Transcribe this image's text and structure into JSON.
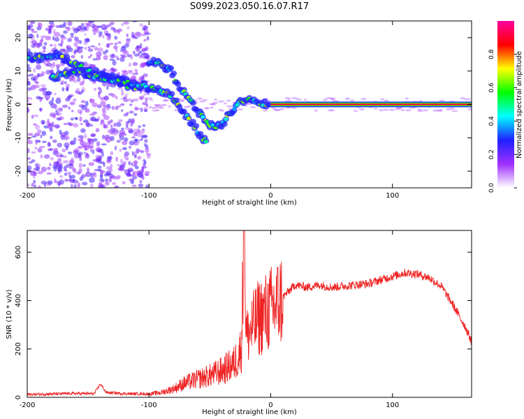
{
  "title": "S099.2023.050.16.07.R17",
  "chart_data": [
    {
      "type": "heatmap",
      "xlabel": "Height of straight line (km)",
      "ylabel": "Frequency (Hz)",
      "xlim": [
        -200,
        165
      ],
      "ylim": [
        -25,
        25
      ],
      "xticks": [
        -200,
        -100,
        0,
        100
      ],
      "yticks": [
        -20,
        -10,
        0,
        10,
        20
      ],
      "colorbar": {
        "label": "Normalized spectral amplitude",
        "range": [
          0,
          1
        ],
        "ticks": [
          "0.0",
          "0.2",
          "0.4",
          "0.6",
          "0.8"
        ],
        "colors": [
          "#ffffff",
          "#a030ff",
          "#2020ff",
          "#00ffff",
          "#00ff00",
          "#ffff00",
          "#ff0000",
          "#ff00a0"
        ]
      },
      "ridges": [
        {
          "name": "",
          "points": [
            [
              -200,
              14
            ],
            [
              -185,
              14
            ],
            [
              -175,
              15
            ],
            [
              -165,
              13
            ],
            [
              -150,
              10
            ],
            [
              -140,
              9
            ],
            [
              -130,
              8
            ],
            [
              -120,
              6
            ],
            [
              -110,
              4
            ]
          ]
        },
        {
          "name": "",
          "points": [
            [
              -180,
              8
            ],
            [
              -170,
              9
            ],
            [
              -160,
              10
            ],
            [
              -150,
              9
            ],
            [
              -140,
              8
            ],
            [
              -130,
              7
            ],
            [
              -120,
              7
            ],
            [
              -110,
              6
            ],
            [
              -100,
              5
            ],
            [
              -90,
              4
            ],
            [
              -80,
              2
            ],
            [
              -70,
              -3
            ],
            [
              -60,
              -8
            ],
            [
              -52,
              -12
            ]
          ]
        },
        {
          "name": "",
          "points": [
            [
              -100,
              13
            ],
            [
              -90,
              12
            ],
            [
              -82,
              10
            ],
            [
              -75,
              5
            ],
            [
              -65,
              1
            ],
            [
              -58,
              -3
            ],
            [
              -50,
              -6
            ],
            [
              -44,
              -7
            ],
            [
              -38,
              -5
            ],
            [
              -30,
              -1
            ],
            [
              -20,
              2
            ],
            [
              -10,
              0
            ],
            [
              0,
              0
            ]
          ]
        },
        {
          "name": "",
          "points": [
            [
              0,
              0
            ],
            [
              165,
              0
            ]
          ]
        }
      ]
    },
    {
      "type": "line",
      "xlabel": "Height of straight line (km)",
      "ylabel": "SNR (10 * v/v)",
      "xlim": [
        -200,
        165
      ],
      "ylim": [
        0,
        690
      ],
      "xticks": [
        -200,
        -100,
        0,
        100
      ],
      "yticks": [
        0,
        200,
        400,
        600
      ],
      "series": [
        {
          "name": "",
          "color": "#ee2222",
          "x": [
            -200,
            -180,
            -160,
            -145,
            -140,
            -135,
            -120,
            -100,
            -90,
            -80,
            -70,
            -60,
            -50,
            -40,
            -30,
            -24,
            -22,
            -20,
            -15,
            -10,
            -5,
            0,
            5,
            10,
            15,
            20,
            30,
            40,
            50,
            60,
            70,
            80,
            90,
            100,
            110,
            120,
            130,
            140,
            150,
            160,
            165
          ],
          "y": [
            12,
            14,
            16,
            15,
            55,
            20,
            15,
            14,
            20,
            35,
            60,
            75,
            90,
            110,
            140,
            200,
            690,
            250,
            290,
            330,
            345,
            365,
            385,
            415,
            440,
            465,
            455,
            465,
            455,
            460,
            465,
            470,
            485,
            500,
            515,
            510,
            495,
            460,
            380,
            290,
            230
          ]
        }
      ]
    }
  ]
}
